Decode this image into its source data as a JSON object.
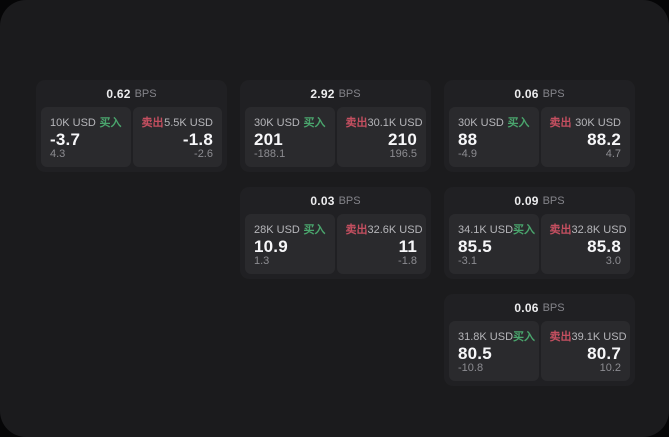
{
  "colors": {
    "buy_accent": "#4aa56d",
    "sell_accent": "#c44f60",
    "panel_background": "#1b1b1d",
    "card_background": "#202023",
    "subpanel_background": "#2a2a2d"
  },
  "cards": [
    {
      "bps_value": "0.62",
      "bps_unit": "BPS",
      "grid": {
        "row": 1,
        "col": 1
      },
      "buy": {
        "side_label": "买入",
        "size": "10K USD",
        "price": "-3.7",
        "delta": "4.3"
      },
      "sell": {
        "side_label": "卖出",
        "size": "5.5K USD",
        "price": "-1.8",
        "delta": "-2.6"
      }
    },
    {
      "bps_value": "2.92",
      "bps_unit": "BPS",
      "grid": {
        "row": 1,
        "col": 2
      },
      "buy": {
        "side_label": "买入",
        "size": "30K USD",
        "price": "201",
        "delta": "-188.1"
      },
      "sell": {
        "side_label": "卖出",
        "size": "30.1K USD",
        "price": "210",
        "delta": "196.5"
      }
    },
    {
      "bps_value": "0.06",
      "bps_unit": "BPS",
      "grid": {
        "row": 1,
        "col": 3
      },
      "buy": {
        "side_label": "买入",
        "size": "30K USD",
        "price": "88",
        "delta": "-4.9"
      },
      "sell": {
        "side_label": "卖出",
        "size": "30K USD",
        "price": "88.2",
        "delta": "4.7"
      }
    },
    {
      "bps_value": "0.03",
      "bps_unit": "BPS",
      "grid": {
        "row": 2,
        "col": 2
      },
      "buy": {
        "side_label": "买入",
        "size": "28K USD",
        "price": "10.9",
        "delta": "1.3"
      },
      "sell": {
        "side_label": "卖出",
        "size": "32.6K USD",
        "price": "11",
        "delta": "-1.8"
      }
    },
    {
      "bps_value": "0.09",
      "bps_unit": "BPS",
      "grid": {
        "row": 2,
        "col": 3
      },
      "buy": {
        "side_label": "买入",
        "size": "34.1K USD",
        "price": "85.5",
        "delta": "-3.1"
      },
      "sell": {
        "side_label": "卖出",
        "size": "32.8K USD",
        "price": "85.8",
        "delta": "3.0"
      }
    },
    {
      "bps_value": "0.06",
      "bps_unit": "BPS",
      "grid": {
        "row": 3,
        "col": 3
      },
      "buy": {
        "side_label": "买入",
        "size": "31.8K USD",
        "price": "80.5",
        "delta": "-10.8"
      },
      "sell": {
        "side_label": "卖出",
        "size": "39.1K USD",
        "price": "80.7",
        "delta": "10.2"
      }
    }
  ]
}
